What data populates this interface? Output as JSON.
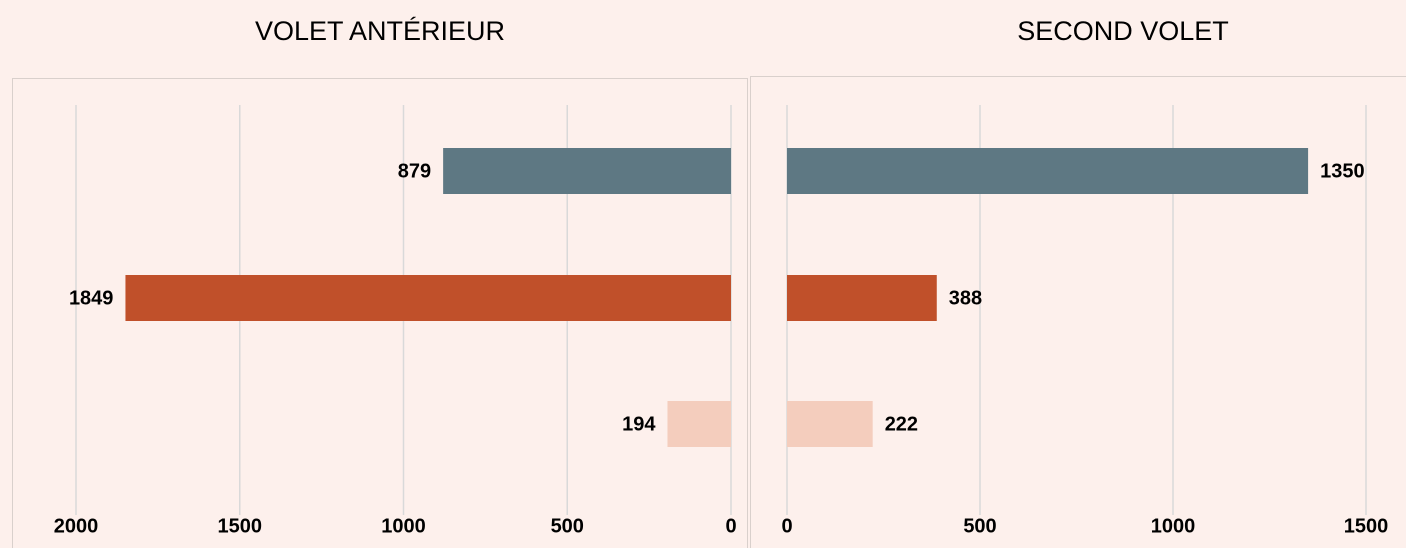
{
  "chart_data": [
    {
      "type": "bar",
      "orientation": "horizontal",
      "title": "VOLET ANTÉRIEUR",
      "categories": [
        null,
        null,
        null
      ],
      "values": [
        879,
        1849,
        194
      ],
      "colors": [
        "#5e7883",
        "#c0502a",
        "#f4cdbd"
      ],
      "xlim": [
        0,
        2000
      ],
      "xticks": [
        0,
        500,
        1000,
        1500,
        2000
      ],
      "x_reversed": true,
      "grid": true
    },
    {
      "type": "bar",
      "orientation": "horizontal",
      "title": "SECOND VOLET",
      "categories": [
        null,
        null,
        null
      ],
      "values": [
        1350,
        388,
        222
      ],
      "colors": [
        "#5e7883",
        "#c0502a",
        "#f4cdbd"
      ],
      "xlim": [
        0,
        1500
      ],
      "xticks": [
        0,
        500,
        1000,
        1500
      ],
      "x_reversed": false,
      "grid": true
    }
  ]
}
